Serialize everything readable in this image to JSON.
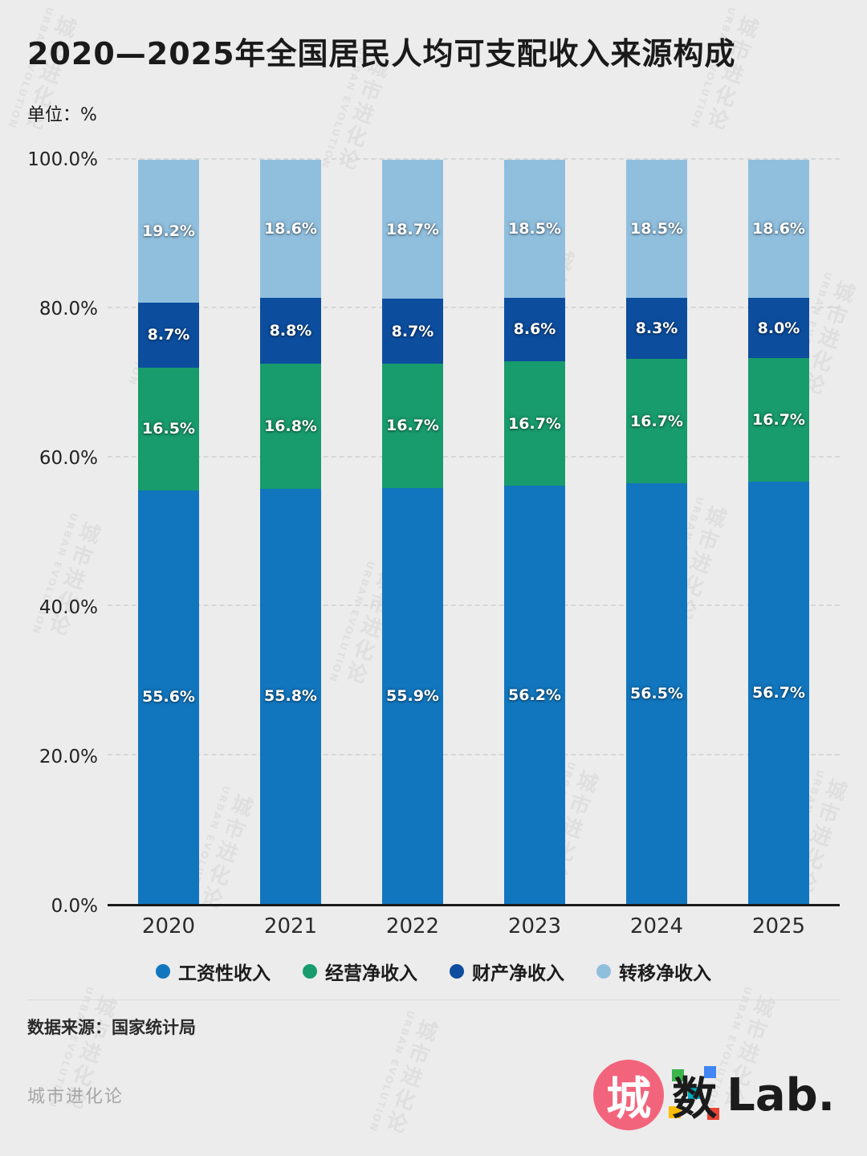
{
  "title": "2020—2025年全国居民人均可支配收入来源构成",
  "unit_label": "单位：%",
  "source": "数据来源：国家统计局",
  "watermark": {
    "cn": "城市进化论",
    "en": "URBAN EVOLUTION"
  },
  "footer": {
    "brand": "城市进化论",
    "logo": {
      "cheng": "城",
      "shu": "数",
      "lab": "Lab."
    }
  },
  "chart_data": {
    "type": "bar",
    "stacked": true,
    "percent_stacked": true,
    "categories": [
      "2020",
      "2021",
      "2022",
      "2023",
      "2024",
      "2025"
    ],
    "series": [
      {
        "name": "工资性收入",
        "color": "#1176BE",
        "values": [
          55.6,
          55.8,
          55.9,
          56.2,
          56.5,
          56.7
        ]
      },
      {
        "name": "经营净收入",
        "color": "#189B6D",
        "values": [
          16.5,
          16.8,
          16.7,
          16.7,
          16.7,
          16.7
        ]
      },
      {
        "name": "财产净收入",
        "color": "#0C4D9E",
        "values": [
          8.7,
          8.8,
          8.7,
          8.6,
          8.3,
          8.0
        ]
      },
      {
        "name": "转移净收入",
        "color": "#90BFDE",
        "values": [
          19.2,
          18.6,
          18.7,
          18.5,
          18.5,
          18.6
        ]
      }
    ],
    "title": "2020—2025年全国居民人均可支配收入来源构成",
    "xlabel": "",
    "ylabel": "单位：%",
    "ylim": [
      0,
      100
    ],
    "yticks": [
      "0.0%",
      "20.0%",
      "40.0%",
      "60.0%",
      "80.0%",
      "100.0%"
    ],
    "grid": true,
    "grid_style": "dashed-horizontal",
    "legend_position": "bottom"
  }
}
